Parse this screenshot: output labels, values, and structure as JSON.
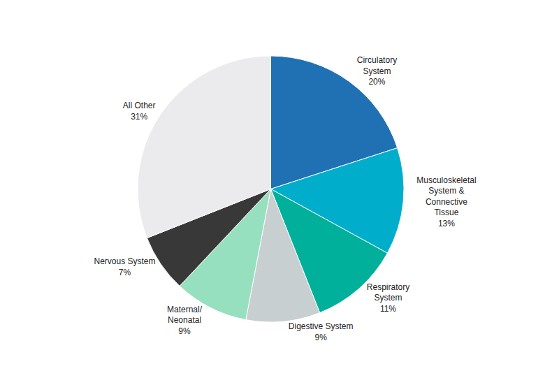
{
  "chart_data": {
    "type": "pie",
    "categories": [
      "Circulatory\nSystem\n20%",
      "Musculoskeletal\nSystem &\nConnective\nTissue\n13%",
      "Respiratory\nSystem\n11%",
      "Digestive System\n9%",
      "Maternal/\nNeonatal\n9%",
      "Nervous System\n7%",
      "All Other\n31%"
    ],
    "values": [
      20,
      13,
      11,
      9,
      9,
      7,
      31
    ],
    "colors": [
      "#2070b4",
      "#00aecc",
      "#00b09a",
      "#c8cfd0",
      "#96e0c0",
      "#383838",
      "#ebebed"
    ]
  }
}
